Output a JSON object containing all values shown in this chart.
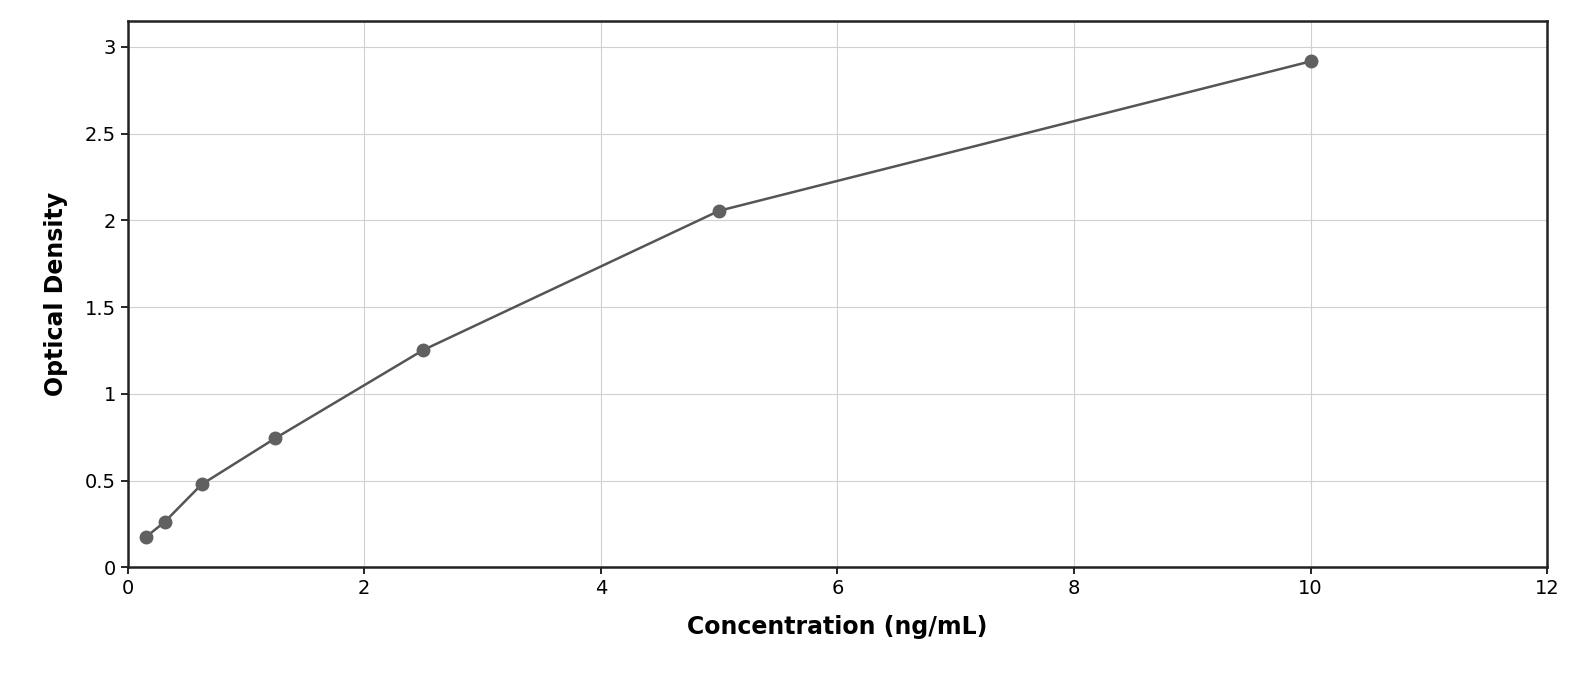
{
  "x_data": [
    0.156,
    0.313,
    0.625,
    1.25,
    2.5,
    5.0,
    10.0
  ],
  "y_data": [
    0.176,
    0.262,
    0.478,
    0.745,
    1.253,
    2.055,
    2.916
  ],
  "marker_color": "#606060",
  "line_color": "#555555",
  "marker_size": 9,
  "line_width": 1.8,
  "xlabel": "Concentration (ng/mL)",
  "ylabel": "Optical Density",
  "xlim": [
    0,
    12
  ],
  "ylim": [
    0,
    3.15
  ],
  "xticks": [
    0,
    2,
    4,
    6,
    8,
    10,
    12
  ],
  "yticks": [
    0,
    0.5,
    1.0,
    1.5,
    2.0,
    2.5,
    3.0
  ],
  "grid_color": "#d0d0d0",
  "background_color": "#ffffff",
  "border_color": "#222222",
  "xlabel_fontsize": 17,
  "ylabel_fontsize": 17,
  "tick_fontsize": 14,
  "figure_bg": "#ffffff"
}
